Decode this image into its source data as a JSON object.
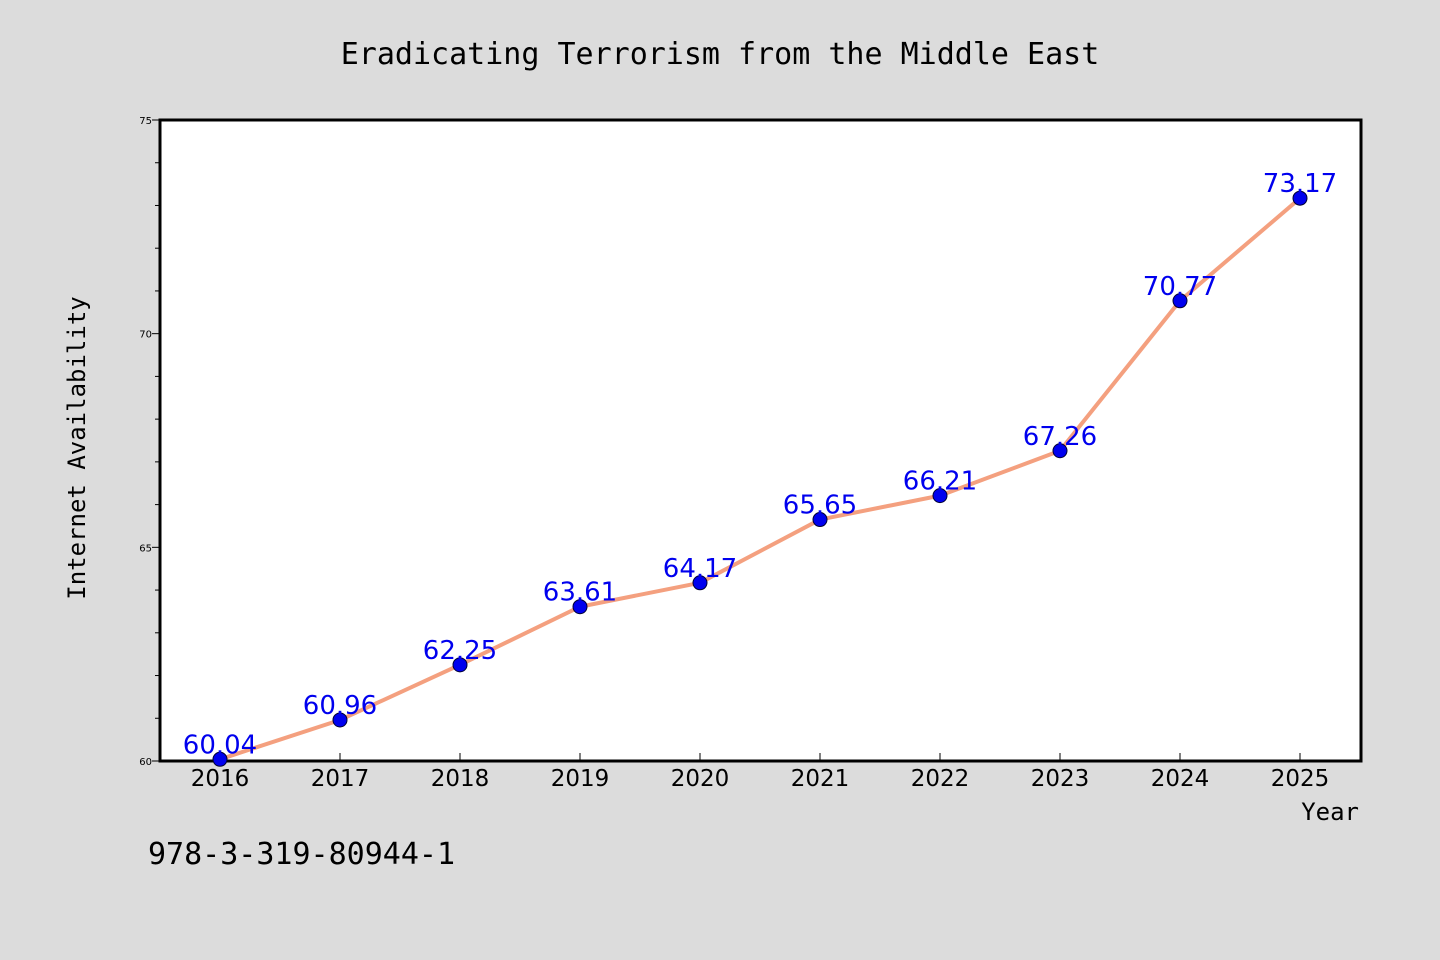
{
  "chart_data": {
    "type": "line",
    "title": "Eradicating Terrorism from the Middle East",
    "xlabel": "Year",
    "ylabel": "Internet Availability",
    "categories": [
      "2016",
      "2017",
      "2018",
      "2019",
      "2020",
      "2021",
      "2022",
      "2023",
      "2024",
      "2025"
    ],
    "values": [
      60.04,
      60.96,
      62.25,
      63.61,
      64.17,
      65.65,
      66.21,
      67.26,
      70.77,
      73.17
    ],
    "data_labels": [
      "60.04",
      "60.96",
      "62.25",
      "63.61",
      "64.17",
      "65.65",
      "66.21",
      "67.26",
      "70.77",
      "73.17"
    ],
    "ylim": [
      60,
      75
    ],
    "yticks": [
      60,
      65,
      70,
      75
    ],
    "ytick_labels": [
      "60",
      "65",
      "70",
      "75"
    ],
    "grid": false,
    "legend": "none",
    "line_color": "#f4a07f",
    "marker_color": "#0000ee",
    "label_color": "#0000ee",
    "background_color": "#dcdcdc",
    "plot_background_color": "#ffffff"
  },
  "footer": {
    "text": "978-3-319-80944-1"
  }
}
